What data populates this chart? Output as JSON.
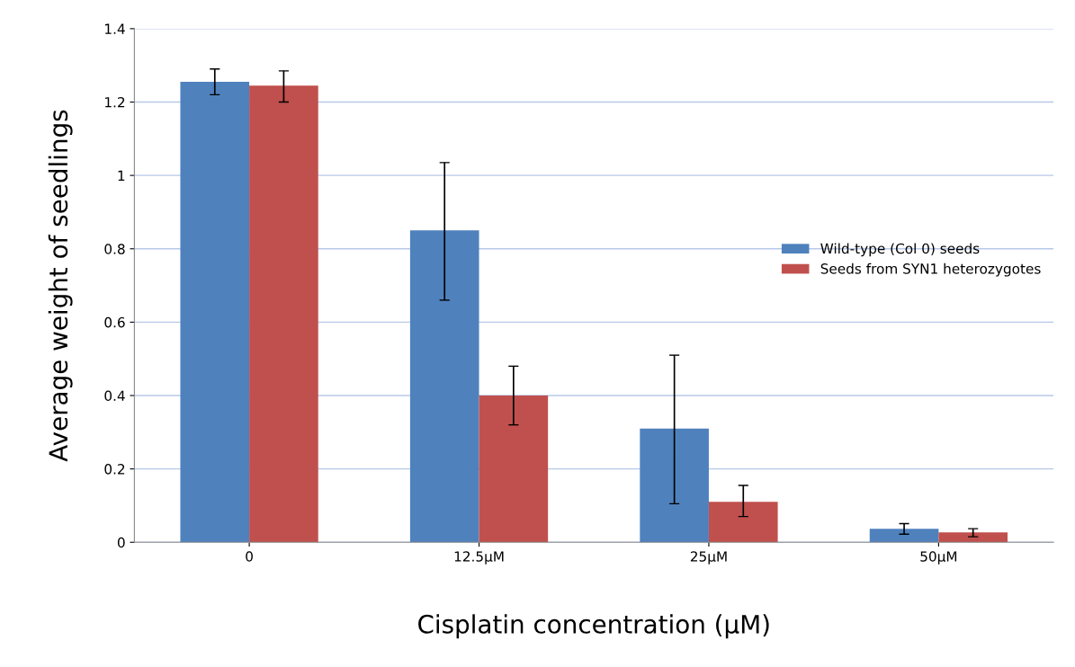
{
  "chart_data": {
    "type": "bar",
    "xlabel": "Cisplatin concentration (µM)",
    "ylabel": "Average weight of seedlings",
    "categories": [
      "0",
      "12.5µM",
      "25µM",
      "50µM"
    ],
    "series": [
      {
        "name": "Wild-type (Col 0) seeds",
        "color": "#4f81bd",
        "values": [
          1.255,
          0.85,
          0.31,
          0.037
        ],
        "errors": [
          [
            1.22,
            1.29
          ],
          [
            0.66,
            1.035
          ],
          [
            0.105,
            0.51
          ],
          [
            0.022,
            0.051
          ]
        ]
      },
      {
        "name": "Seeds from SYN1 heterozygotes",
        "color": "#c0504d",
        "values": [
          1.245,
          0.4,
          0.11,
          0.027
        ],
        "errors": [
          [
            1.2,
            1.285
          ],
          [
            0.32,
            0.48
          ],
          [
            0.07,
            0.155
          ],
          [
            0.015,
            0.037
          ]
        ]
      }
    ],
    "ylim": [
      0,
      1.4
    ],
    "yticks": [
      0,
      0.2,
      0.4,
      0.6,
      0.8,
      1,
      1.2,
      1.4
    ],
    "grid": "y",
    "legend": "right"
  }
}
